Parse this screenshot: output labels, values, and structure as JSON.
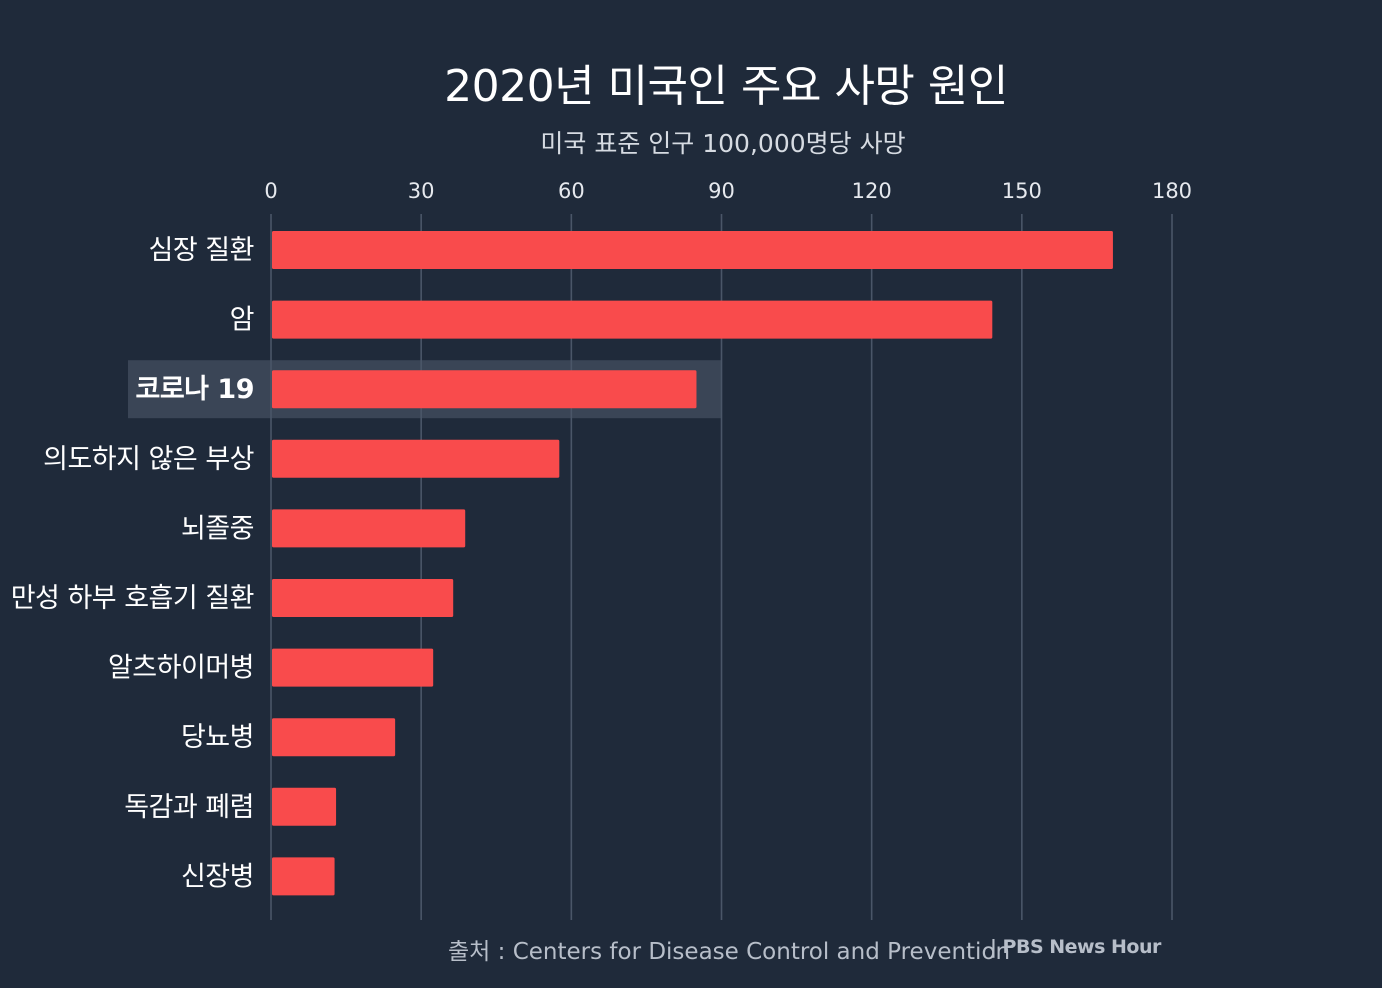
{
  "chart_data": {
    "type": "bar",
    "orientation": "horizontal",
    "title": "2020년 미국인 주요 사망 원인",
    "subtitle": "미국 표준 인구 100,000명당 사망",
    "categories": [
      "심장 질환",
      "암",
      "코로나 19",
      "의도하지 않은 부상",
      "뇌졸중",
      "만성 하부 호흡기 질환",
      "알츠하이머병",
      "당뇨병",
      "독감과 폐렴",
      "신장병"
    ],
    "values": [
      168.2,
      144.1,
      85.0,
      57.6,
      38.8,
      36.4,
      32.4,
      24.8,
      13.0,
      12.7
    ],
    "highlight": "코로나 19",
    "xlim": [
      0,
      180
    ],
    "xticks": [
      0,
      30,
      60,
      90,
      120,
      150,
      180
    ],
    "grid": true,
    "xlabel": "",
    "ylabel": "",
    "source": "출처 : Centers for Disease Control and Prevention",
    "brand": "| PBS News Hour"
  },
  "colors": {
    "background": "#1f2a3a",
    "bar": "#f94b4c",
    "gridline": "#4a5668",
    "highlight_band": "#3a4556",
    "text": "#ffffff",
    "tick_text": "#e6e9ee"
  }
}
